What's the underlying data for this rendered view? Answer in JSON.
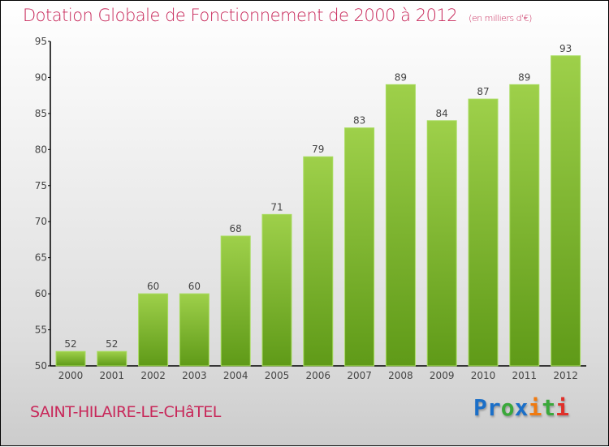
{
  "chart_data": {
    "type": "bar",
    "title": "Dotation Globale de Fonctionnement de 2000 à 2012",
    "unit_label": "(en milliers d'€)",
    "categories": [
      "2000",
      "2001",
      "2002",
      "2003",
      "2004",
      "2005",
      "2006",
      "2007",
      "2008",
      "2009",
      "2010",
      "2011",
      "2012"
    ],
    "values": [
      52,
      52,
      60,
      60,
      68,
      71,
      79,
      83,
      89,
      84,
      87,
      89,
      93
    ],
    "ylim": [
      50,
      95
    ],
    "yticks": [
      50,
      55,
      60,
      65,
      70,
      75,
      80,
      85,
      90,
      95
    ],
    "xlabel": "",
    "ylabel": "",
    "bar_color": "#8cc63f"
  },
  "footer": {
    "city": "SAINT-HILAIRE-LE-CHâTEL",
    "logo": "Proxiti"
  }
}
